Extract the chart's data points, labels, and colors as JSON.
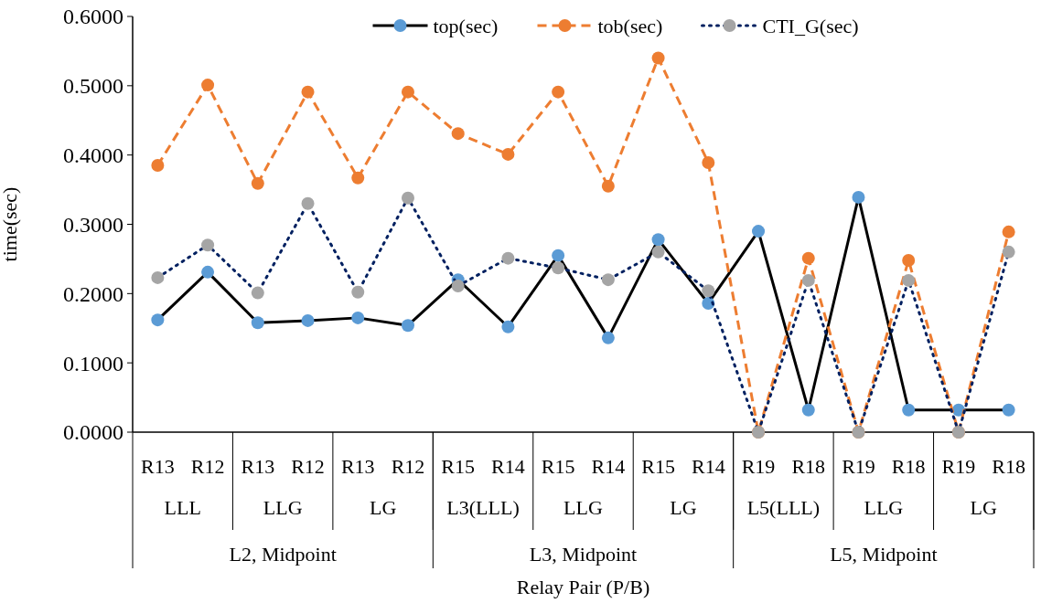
{
  "chart_data": {
    "type": "line",
    "xlabel": "Relay Pair (P/B)",
    "ylabel": "time(sec)",
    "categories": [
      "R13",
      "R12",
      "R13",
      "R12",
      "R13",
      "R12",
      "R15",
      "R14",
      "R15",
      "R14",
      "R15",
      "R14",
      "R19",
      "R18",
      "R19",
      "R18",
      "R19",
      "R18"
    ],
    "annotations": [
      "LLL",
      "LLG",
      "LG",
      "L3(LLL)",
      "LLG",
      "LG",
      "L5(LLL)",
      "LLG",
      "LG",
      "L2, Midpoint",
      "L3, Midpoint",
      "L5, Midpoint"
    ],
    "ylim": [
      0,
      0.6
    ],
    "yticks": [
      {
        "value": 0,
        "label": "0.0000"
      },
      {
        "value": 0.1,
        "label": "0.1000"
      },
      {
        "value": 0.2,
        "label": "0.2000"
      },
      {
        "value": 0.3,
        "label": "0.3000"
      },
      {
        "value": 0.4,
        "label": "0.4000"
      },
      {
        "value": 0.5,
        "label": "0.5000"
      },
      {
        "value": 0.6,
        "label": "0.6000"
      }
    ],
    "legend": "top",
    "marker": "circle",
    "grid": false,
    "series": [
      {
        "name": "top(sec)",
        "color": "#000000",
        "line_style": "solid",
        "colors": [
          "#5b9bd5",
          "#5b9bd5",
          "#5b9bd5",
          "#5b9bd5",
          "#5b9bd5",
          "#5b9bd5",
          "#5b9bd5",
          "#5b9bd5",
          "#5b9bd5",
          "#5b9bd5",
          "#5b9bd5",
          "#5b9bd5",
          "#5b9bd5",
          "#5b9bd5",
          "#5b9bd5",
          "#5b9bd5",
          "#5b9bd5",
          "#5b9bd5"
        ],
        "values": [
          0.162,
          0.231,
          0.158,
          0.161,
          0.165,
          0.154,
          0.22,
          0.152,
          0.255,
          0.136,
          0.278,
          0.186,
          0.29,
          0.032,
          0.339,
          0.032,
          0.032,
          0.032
        ]
      },
      {
        "name": "tob(sec)",
        "color": "#ed7d31",
        "line_style": "dashed",
        "colors": [
          "#ed7d31",
          "#ed7d31",
          "#ed7d31",
          "#ed7d31",
          "#ed7d31",
          "#ed7d31",
          "#ed7d31",
          "#ed7d31",
          "#ed7d31",
          "#ed7d31",
          "#ed7d31",
          "#ed7d31",
          "#ed7d31",
          "#ed7d31",
          "#ed7d31",
          "#ed7d31",
          "#ed7d31",
          "#ed7d31"
        ],
        "values": [
          0.385,
          0.501,
          0.359,
          0.491,
          0.367,
          0.491,
          0.431,
          0.401,
          0.491,
          0.355,
          0.54,
          0.389,
          0,
          0.251,
          0,
          0.248,
          0,
          0.289
        ]
      },
      {
        "name": "CTI_G(sec)",
        "color": "#002060",
        "line_style": "dotted",
        "colors": [
          "#a5a5a5",
          "#a5a5a5",
          "#a5a5a5",
          "#a5a5a5",
          "#a5a5a5",
          "#a5a5a5",
          "#a5a5a5",
          "#a5a5a5",
          "#a5a5a5",
          "#a5a5a5",
          "#a5a5a5",
          "#a5a5a5",
          "#a5a5a5",
          "#a5a5a5",
          "#a5a5a5",
          "#a5a5a5",
          "#a5a5a5",
          "#a5a5a5"
        ],
        "values": [
          0.223,
          0.27,
          0.201,
          0.33,
          0.202,
          0.338,
          0.211,
          0.251,
          0.237,
          0.22,
          0.26,
          0.204,
          0,
          0.219,
          0,
          0.219,
          0,
          0.26
        ]
      }
    ]
  }
}
